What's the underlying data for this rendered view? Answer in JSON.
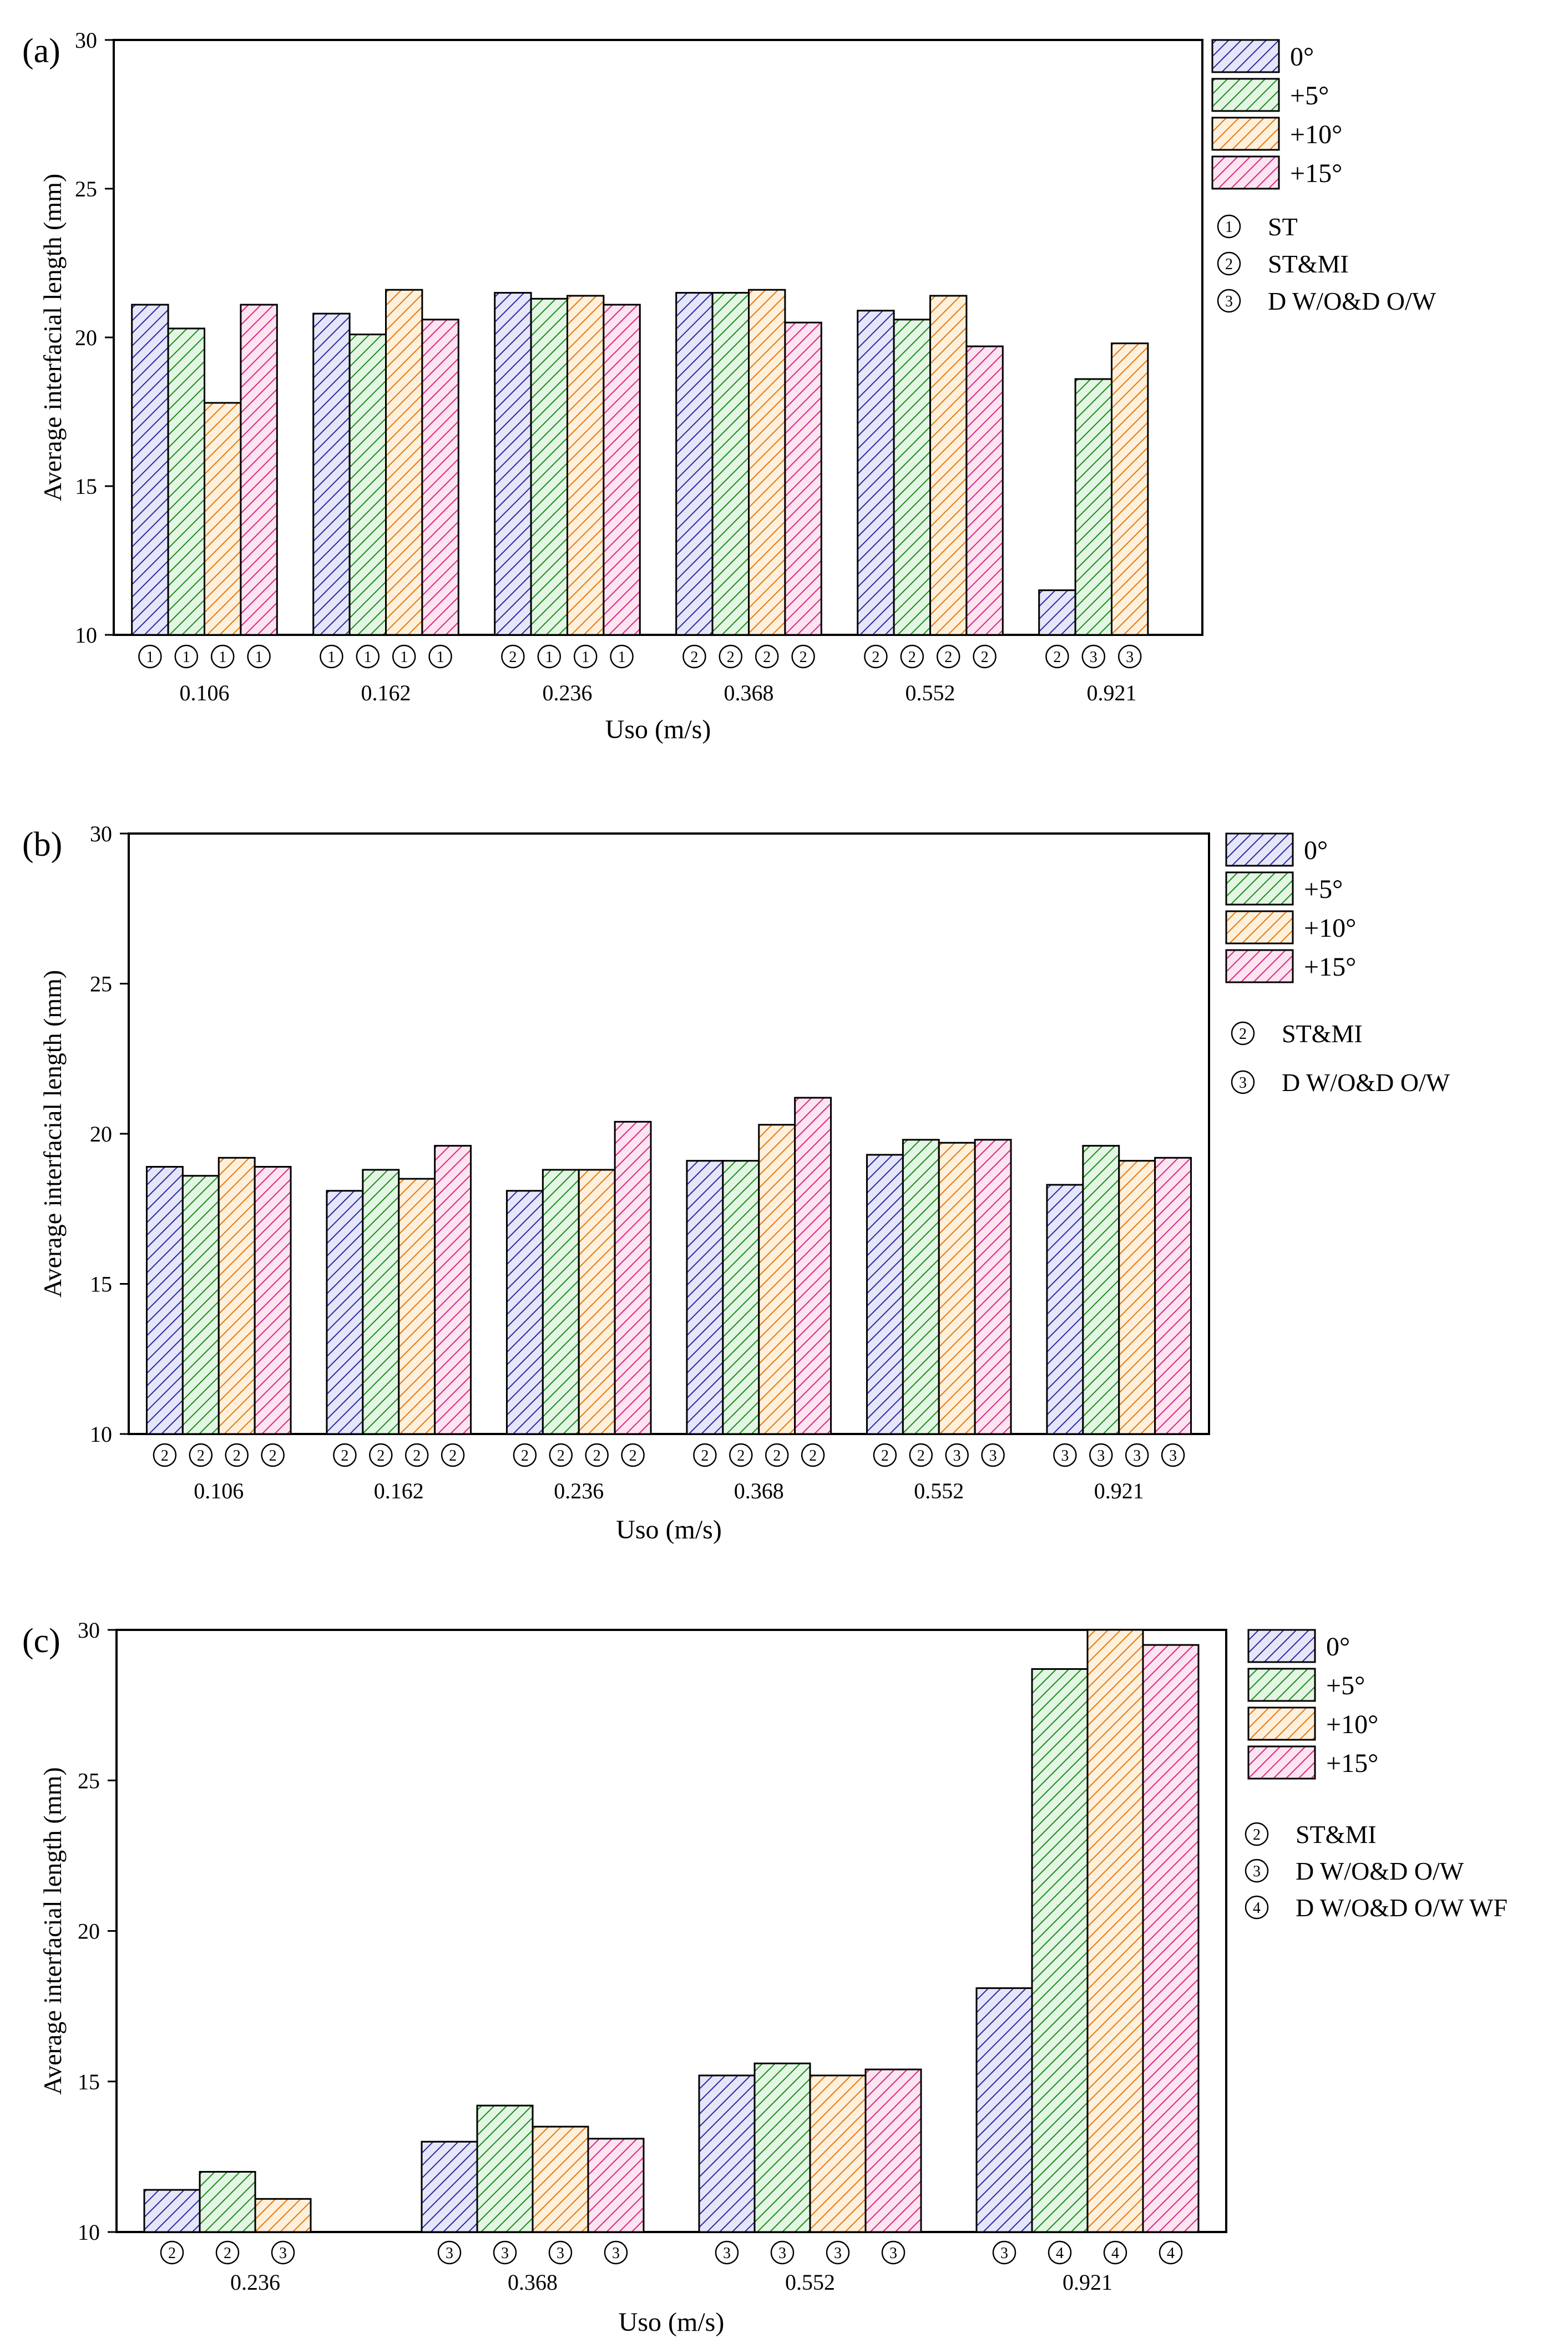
{
  "figure": {
    "series_styles": [
      {
        "name": "0°",
        "color": "#2a2a9e",
        "fill": "#e6e6fa"
      },
      {
        "name": "+5°",
        "color": "#1f8a1f",
        "fill": "#e3f6e3"
      },
      {
        "name": "+10°",
        "color": "#e07b12",
        "fill": "#fff0dc"
      },
      {
        "name": "+15°",
        "color": "#d62a83",
        "fill": "#fde4f1"
      }
    ]
  },
  "chart_data": [
    {
      "type": "bar",
      "panel_label": "(a)",
      "xlabel": "Uso (m/s)",
      "ylabel": "Average interfacial length (mm)",
      "ylim": [
        10,
        30
      ],
      "yticks": [
        "10",
        "15",
        "20",
        "25",
        "30"
      ],
      "grid": false,
      "legend_position": "right",
      "categories": [
        "0.106",
        "0.162",
        "0.236",
        "0.368",
        "0.552",
        "0.921"
      ],
      "series": [
        {
          "name": "0°",
          "values": [
            21.1,
            20.8,
            21.5,
            21.5,
            20.9,
            11.5
          ]
        },
        {
          "name": "+5°",
          "values": [
            20.3,
            20.1,
            21.3,
            21.5,
            20.6,
            18.6
          ]
        },
        {
          "name": "+10°",
          "values": [
            17.8,
            21.6,
            21.4,
            21.6,
            21.4,
            19.8
          ]
        },
        {
          "name": "+15°",
          "values": [
            21.1,
            20.6,
            21.1,
            20.5,
            19.7,
            null
          ]
        }
      ],
      "flow_patterns": [
        [
          "①",
          "①",
          "①",
          "①"
        ],
        [
          "①",
          "①",
          "①",
          "①"
        ],
        [
          "②",
          "①",
          "①",
          "①"
        ],
        [
          "②",
          "②",
          "②",
          "②"
        ],
        [
          "②",
          "②",
          "②",
          "②"
        ],
        [
          "②",
          "③",
          "③"
        ]
      ],
      "pattern_key": [
        {
          "symbol": "①",
          "label": "ST"
        },
        {
          "symbol": "②",
          "label": "ST&MI"
        },
        {
          "symbol": "③",
          "label": "D W/O&D O/W"
        }
      ]
    },
    {
      "type": "bar",
      "panel_label": "(b)",
      "xlabel": "Uso (m/s)",
      "ylabel": "Average interfacial length (mm)",
      "ylim": [
        10,
        30
      ],
      "yticks": [
        "10",
        "15",
        "20",
        "25",
        "30"
      ],
      "grid": false,
      "legend_position": "right",
      "categories": [
        "0.106",
        "0.162",
        "0.236",
        "0.368",
        "0.552",
        "0.921"
      ],
      "series": [
        {
          "name": "0°",
          "values": [
            18.9,
            18.1,
            18.1,
            19.1,
            19.3,
            18.3
          ]
        },
        {
          "name": "+5°",
          "values": [
            18.6,
            18.8,
            18.8,
            19.1,
            19.8,
            19.6
          ]
        },
        {
          "name": "+10°",
          "values": [
            19.2,
            18.5,
            18.8,
            20.3,
            19.7,
            19.1
          ]
        },
        {
          "name": "+15°",
          "values": [
            18.9,
            19.6,
            20.4,
            21.2,
            19.8,
            19.2
          ]
        }
      ],
      "flow_patterns": [
        [
          "②",
          "②",
          "②",
          "②"
        ],
        [
          "②",
          "②",
          "②",
          "②"
        ],
        [
          "②",
          "②",
          "②",
          "②"
        ],
        [
          "②",
          "②",
          "②",
          "②"
        ],
        [
          "②",
          "②",
          "③",
          "③"
        ],
        [
          "③",
          "③",
          "③",
          "③"
        ]
      ],
      "pattern_key": [
        {
          "symbol": "②",
          "label": "ST&MI"
        },
        {
          "symbol": "③",
          "label": "D W/O&D O/W"
        }
      ]
    },
    {
      "type": "bar",
      "panel_label": "(c)",
      "xlabel": "Uso (m/s)",
      "ylabel": "Average interfacial length (mm)",
      "ylim": [
        10,
        30
      ],
      "yticks": [
        "10",
        "15",
        "20",
        "25",
        "30"
      ],
      "grid": false,
      "legend_position": "right",
      "categories": [
        "0.236",
        "0.368",
        "0.552",
        "0.921"
      ],
      "series": [
        {
          "name": "0°",
          "values": [
            11.4,
            13.0,
            15.2,
            18.1
          ]
        },
        {
          "name": "+5°",
          "values": [
            12.0,
            14.2,
            15.6,
            28.7
          ]
        },
        {
          "name": "+10°",
          "values": [
            11.1,
            13.5,
            15.2,
            30.0
          ]
        },
        {
          "name": "+15°",
          "values": [
            null,
            13.1,
            15.4,
            29.5
          ]
        }
      ],
      "flow_patterns": [
        [
          "②",
          "②",
          "③"
        ],
        [
          "③",
          "③",
          "③",
          "③"
        ],
        [
          "③",
          "③",
          "③",
          "③"
        ],
        [
          "③",
          "④",
          "④",
          "④"
        ]
      ],
      "pattern_key": [
        {
          "symbol": "②",
          "label": "ST&MI"
        },
        {
          "symbol": "③",
          "label": "D W/O&D O/W"
        },
        {
          "symbol": "④",
          "label": "D W/O&D O/W WF"
        }
      ]
    }
  ]
}
